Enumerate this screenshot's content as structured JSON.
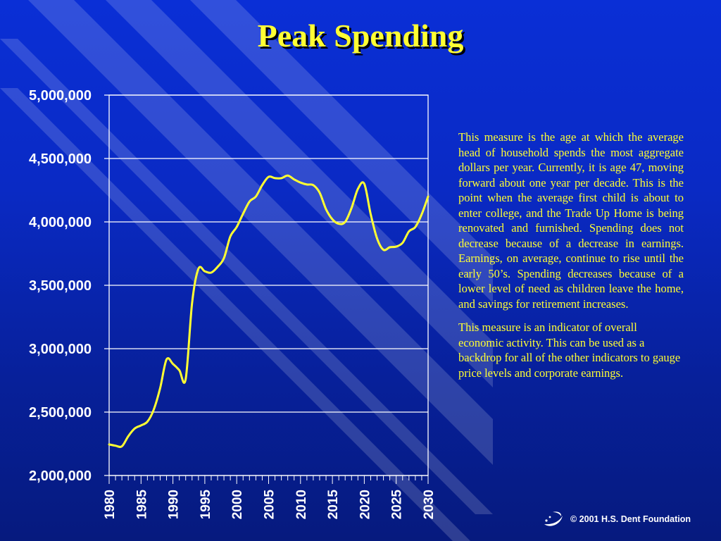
{
  "slide": {
    "title": "Peak Spending",
    "paragraphs": [
      "This measure is the age at which the average head of household spends the most aggregate dollars per year. Currently, it is age 47, moving forward about one year per decade.  This is the point when the average first child is about to enter college, and the Trade Up Home is being renovated and furnished. Spending does not decrease because of a decrease in earnings.  Earnings, on average, continue to rise until the early 50’s.  Spending decreases because of a lower level of need as children leave the home, and savings for retirement increases.",
      "This measure is an indicator of overall economic activity.  This can be used as a backdrop for all of the other indicators to gauge price levels and corporate earnings."
    ],
    "footer": "© 2001 H.S. Dent Foundation",
    "colors": {
      "title": "#ffff33",
      "body_text": "#ffff33",
      "line": "#ffff33",
      "grid": "#ffffff",
      "background": "#0a2ac4"
    },
    "logo_icon": "swoosh-logo-icon"
  },
  "chart_data": {
    "type": "line",
    "title": "",
    "xlabel": "",
    "ylabel": "",
    "xlim": [
      1980,
      2030
    ],
    "ylim": [
      2000000,
      5000000
    ],
    "yticks": [
      2000000,
      2500000,
      3000000,
      3500000,
      4000000,
      4500000,
      5000000
    ],
    "ytick_labels": [
      "2,000,000",
      "2,500,000",
      "3,000,000",
      "3,500,000",
      "4,000,000",
      "4,500,000",
      "5,000,000"
    ],
    "xticks": [
      1980,
      1985,
      1990,
      1995,
      2000,
      2005,
      2010,
      2015,
      2020,
      2025,
      2030
    ],
    "xtick_labels": [
      "1980",
      "1985",
      "1990",
      "1995",
      "2000",
      "2005",
      "2010",
      "2015",
      "2020",
      "2025",
      "2030"
    ],
    "grid": "horizontal",
    "series": [
      {
        "x": [
          1980,
          1981,
          1982,
          1983,
          1984,
          1985,
          1986,
          1987,
          1988,
          1989,
          1990,
          1991,
          1992,
          1993,
          1994,
          1995,
          1996,
          1997,
          1998,
          1999,
          2000,
          2001,
          2002,
          2003,
          2004,
          2005,
          2006,
          2007,
          2008,
          2009,
          2010,
          2011,
          2012,
          2013,
          2014,
          2015,
          2016,
          2017,
          2018,
          2019,
          2020,
          2021,
          2022,
          2023,
          2024,
          2025,
          2026,
          2027,
          2028,
          2029,
          2030
        ],
        "values": [
          2245000,
          2235000,
          2230000,
          2310000,
          2370000,
          2395000,
          2425000,
          2520000,
          2690000,
          2915000,
          2880000,
          2830000,
          2760000,
          3360000,
          3630000,
          3610000,
          3600000,
          3645000,
          3715000,
          3885000,
          3960000,
          4065000,
          4160000,
          4200000,
          4290000,
          4355000,
          4345000,
          4345000,
          4365000,
          4335000,
          4310000,
          4295000,
          4290000,
          4230000,
          4100000,
          4020000,
          3985000,
          4000000,
          4110000,
          4260000,
          4300000,
          4060000,
          3870000,
          3780000,
          3800000,
          3805000,
          3835000,
          3925000,
          3960000,
          4060000,
          4200000
        ]
      }
    ]
  }
}
